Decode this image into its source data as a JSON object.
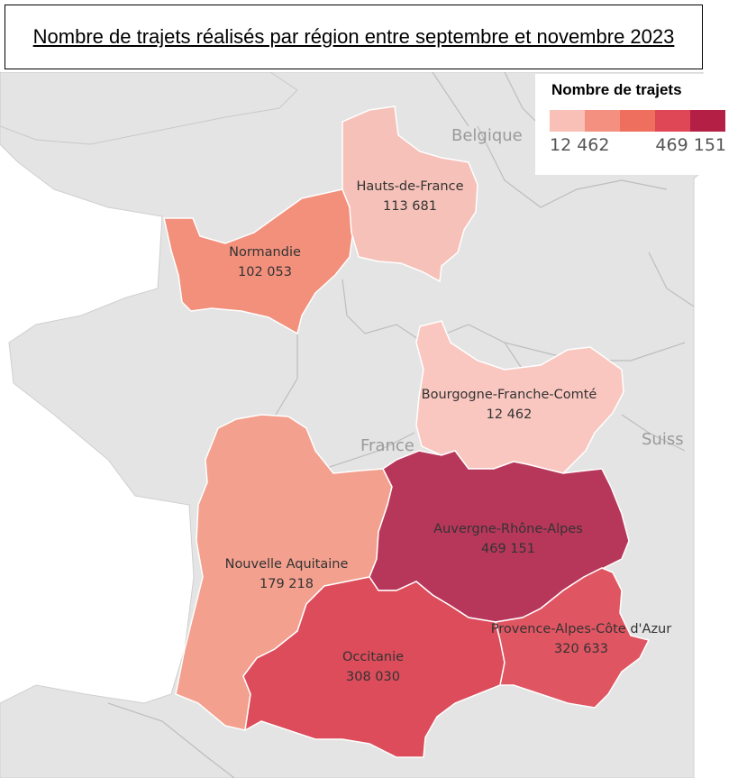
{
  "title": "Nombre de trajets réalisés par région entre septembre et novembre 2023",
  "legend": {
    "title": "Nombre de trajets",
    "min_label": "12 462",
    "max_label": "469 151",
    "colors": [
      "#f9c0b7",
      "#f4907f",
      "#ef6f5f",
      "#df4656",
      "#b41f46"
    ]
  },
  "background_labels": {
    "belgium": "Belgique",
    "france": "France",
    "switzerland": "Suiss"
  },
  "regions": [
    {
      "name": "Hauts-de-France",
      "value": "113 681",
      "color": "#f2907c"
    },
    {
      "name": "Normandie",
      "value": "102 053",
      "color": "#f6c1b8"
    },
    {
      "name": "Bourgogne-Franche-Comté",
      "value": "12 462",
      "color": "#f9c7c0"
    },
    {
      "name": "Nouvelle Aquitaine",
      "value": "179 218",
      "color": "#f3a08e"
    },
    {
      "name": "Auvergne-Rhône-Alpes",
      "value": "469 151",
      "color": "#b7375a"
    },
    {
      "name": "Occitanie",
      "value": "308 030",
      "color": "#dc4c5a"
    },
    {
      "name": "Provence-Alpes-Côte d'Azur",
      "value": "320 633",
      "color": "#e05562"
    }
  ]
}
